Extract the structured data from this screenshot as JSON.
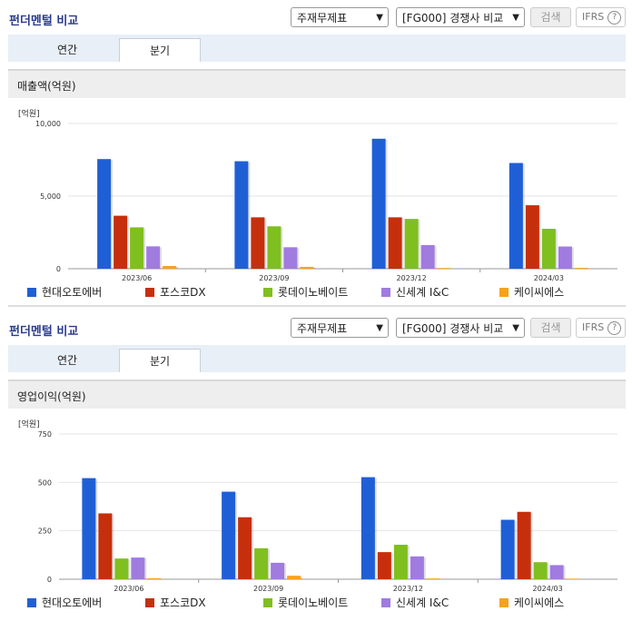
{
  "panels": [
    {
      "title": "펀더멘털 비교",
      "select1": "주재무제표",
      "select2": "[FG000] 경쟁사 비교",
      "search_label": "검색",
      "ifrs_label": "IFRS",
      "ifrs_help": "?",
      "tabs": [
        {
          "label": "연간",
          "active": false
        },
        {
          "label": "분기",
          "active": true
        }
      ],
      "subtitle": "매출액(억원)"
    },
    {
      "title": "펀더멘털 비교",
      "select1": "주재무제표",
      "select2": "[FG000] 경쟁사 비교",
      "search_label": "검색",
      "ifrs_label": "IFRS",
      "ifrs_help": "?",
      "tabs": [
        {
          "label": "연간",
          "active": false
        },
        {
          "label": "분기",
          "active": true
        }
      ],
      "subtitle": "영업이익(억원)"
    }
  ],
  "chart_data": [
    {
      "type": "bar",
      "unit_label": "[억원]",
      "categories": [
        "2023/06",
        "2023/09",
        "2023/12",
        "2024/03"
      ],
      "ylim": [
        0,
        10000
      ],
      "yticks": [
        "0",
        "5,000",
        "10,000"
      ],
      "ytick_values": [
        0,
        5000,
        10000
      ],
      "series": [
        {
          "name": "현대오토에버",
          "color": "#1f5fd6",
          "values": [
            7550,
            7400,
            8950,
            7280
          ]
        },
        {
          "name": "포스코DX",
          "color": "#c62f0c",
          "values": [
            3650,
            3540,
            3540,
            4370
          ]
        },
        {
          "name": "롯데이노베이트",
          "color": "#7fbf1f",
          "values": [
            2850,
            2920,
            3430,
            2750
          ]
        },
        {
          "name": "신세계 I&C",
          "color": "#a07be0",
          "values": [
            1540,
            1480,
            1630,
            1530
          ]
        },
        {
          "name": "케이씨에스",
          "color": "#f7a21a",
          "values": [
            190,
            130,
            50,
            60
          ]
        }
      ]
    },
    {
      "type": "bar",
      "unit_label": "[억원]",
      "categories": [
        "2023/06",
        "2023/09",
        "2023/12",
        "2024/03"
      ],
      "ylim": [
        0,
        750
      ],
      "yticks": [
        "0",
        "250",
        "500",
        "750"
      ],
      "ytick_values": [
        0,
        250,
        500,
        750
      ],
      "series": [
        {
          "name": "현대오토에버",
          "color": "#1f5fd6",
          "values": [
            522,
            452,
            527,
            307
          ]
        },
        {
          "name": "포스코DX",
          "color": "#c62f0c",
          "values": [
            340,
            320,
            140,
            348
          ]
        },
        {
          "name": "롯데이노베이트",
          "color": "#7fbf1f",
          "values": [
            107,
            160,
            178,
            88
          ]
        },
        {
          "name": "신세계 I&C",
          "color": "#a07be0",
          "values": [
            112,
            85,
            118,
            73
          ]
        },
        {
          "name": "케이씨에스",
          "color": "#f7a21a",
          "values": [
            5,
            18,
            4,
            3
          ]
        }
      ]
    }
  ]
}
